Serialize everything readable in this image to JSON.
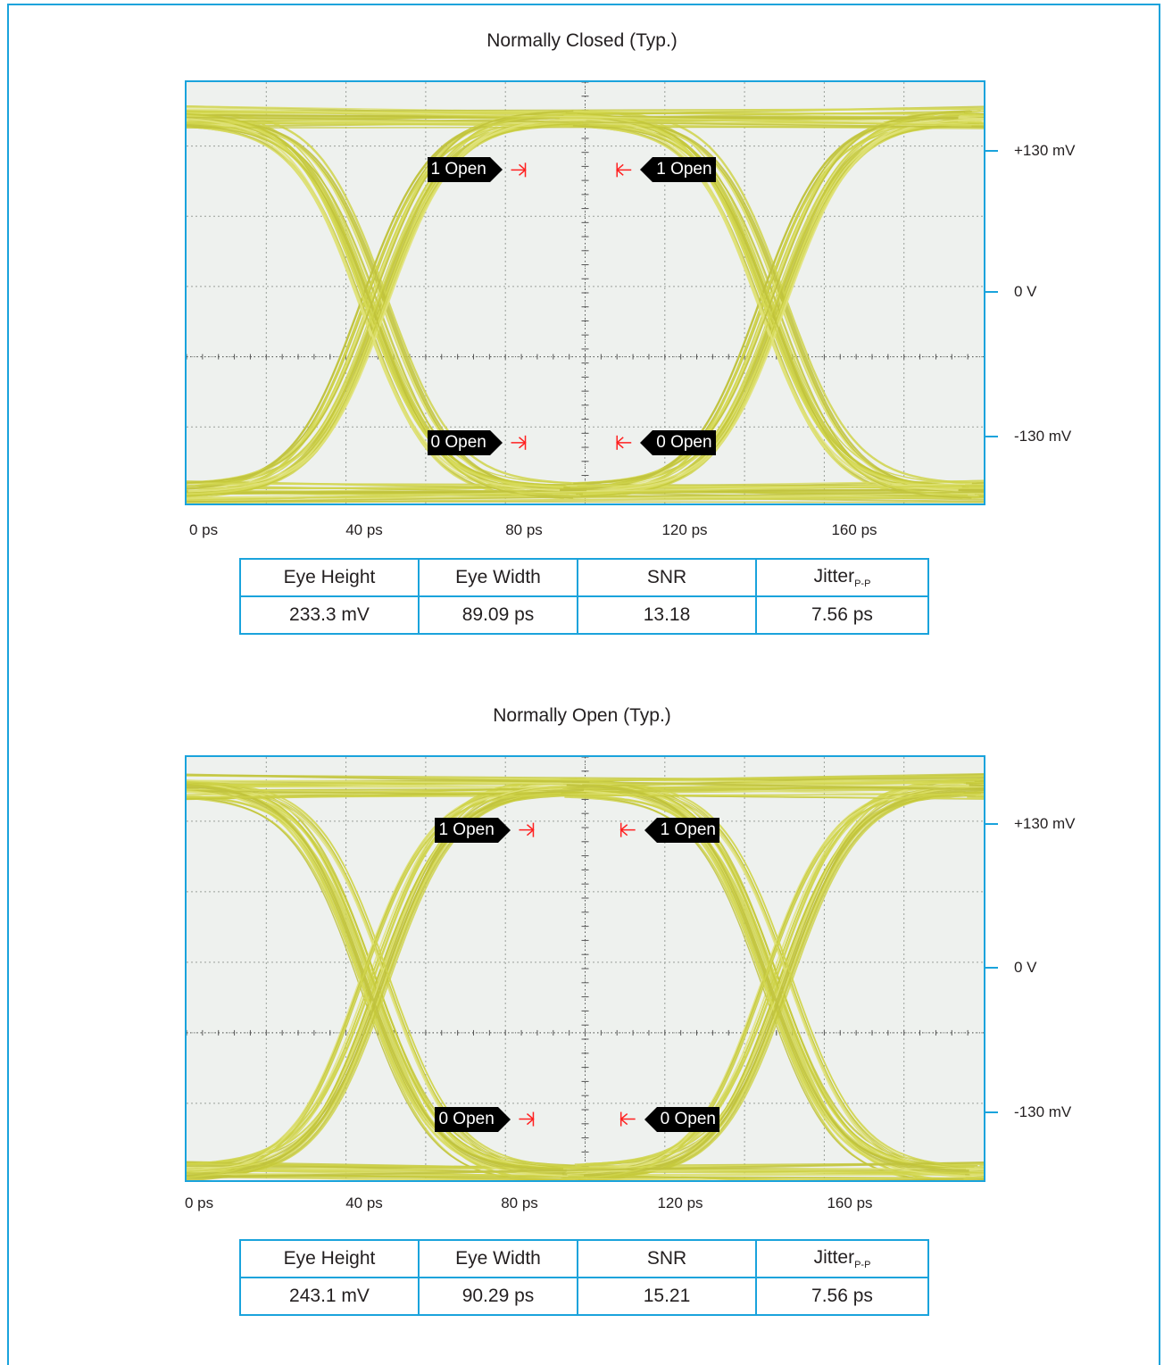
{
  "chart_data": [
    {
      "type": "line",
      "title": "Normally Closed (Typ.)",
      "x_ticks": [
        "0 ps",
        "40 ps",
        "80 ps",
        "120 ps",
        "160 ps"
      ],
      "y_ticks": [
        "+130 mV",
        "0 V",
        "-130 mV"
      ],
      "xlim": [
        0,
        200
      ],
      "ylim": [
        -170,
        190
      ],
      "grid": true,
      "eye": {
        "level_high": 160,
        "level_low": -160,
        "crossing_x": [
          47,
          147
        ],
        "spread": 14
      },
      "markers": [
        {
          "label": "1 Open",
          "side": "left",
          "x": 85,
          "y": 115
        },
        {
          "label": "1 Open",
          "side": "right",
          "x": 108,
          "y": 115
        },
        {
          "label": "0 Open",
          "side": "left",
          "x": 85,
          "y": -118
        },
        {
          "label": "0 Open",
          "side": "right",
          "x": 108,
          "y": -118
        }
      ],
      "table": {
        "headers": [
          "Eye Height",
          "Eye Width",
          "SNR",
          "Jitter"
        ],
        "jitter_sub": "P-P",
        "values": [
          "233.3 mV",
          "89.09 ps",
          "13.18",
          "7.56 ps"
        ]
      }
    },
    {
      "type": "line",
      "title": "Normally Open (Typ.)",
      "x_ticks": [
        "0 ps",
        "40 ps",
        "80 ps",
        "120 ps",
        "160 ps"
      ],
      "y_ticks": [
        "+130 mV",
        "0 V",
        "-130 mV"
      ],
      "xlim": [
        0,
        200
      ],
      "ylim": [
        -170,
        190
      ],
      "grid": true,
      "eye": {
        "level_high": 165,
        "level_low": -165,
        "crossing_x": [
          47,
          148
        ],
        "spread": 16
      },
      "markers": [
        {
          "label": "1 Open",
          "side": "left",
          "x": 87,
          "y": 128
        },
        {
          "label": "1 Open",
          "side": "right",
          "x": 109,
          "y": 128
        },
        {
          "label": "0 Open",
          "side": "left",
          "x": 87,
          "y": -118
        },
        {
          "label": "0 Open",
          "side": "right",
          "x": 109,
          "y": -118
        }
      ],
      "table": {
        "headers": [
          "Eye Height",
          "Eye Width",
          "SNR",
          "Jitter"
        ],
        "jitter_sub": "P-P",
        "values": [
          "243.1 mV",
          "90.29 ps",
          "15.21",
          "7.56 ps"
        ]
      }
    }
  ]
}
